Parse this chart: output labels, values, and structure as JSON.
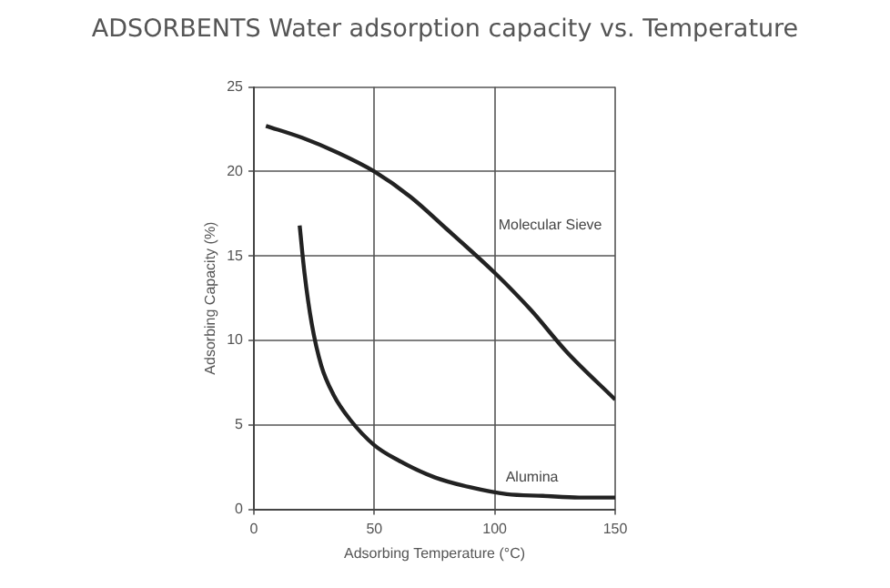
{
  "chart_data": {
    "type": "line",
    "title": "ADSORBENTS Water adsorption capacity vs. Temperature",
    "xlabel": "Adsorbing Temperature (°C)",
    "ylabel": "Adsorbing Capacity (%)",
    "xlim": [
      0,
      150
    ],
    "xticks": [
      0,
      50,
      100,
      150
    ],
    "ylim": [
      0,
      25
    ],
    "yticks": [
      0,
      5,
      10,
      15,
      20,
      25
    ],
    "grid": true,
    "legend": false,
    "marker": "none",
    "line_style": "solid",
    "series": [
      {
        "name": "Molecular Sieve",
        "color": "#222222",
        "x": [
          5,
          20,
          35,
          50,
          65,
          80,
          100,
          115,
          130,
          150
        ],
        "values": [
          22.7,
          22,
          21.1,
          20,
          18.5,
          16.6,
          14,
          11.8,
          9.3,
          6.5
        ]
      },
      {
        "name": "Alumina",
        "color": "#222222",
        "x": [
          19,
          21,
          24,
          28,
          33,
          40,
          50,
          60,
          75,
          90,
          105,
          120,
          135,
          150
        ],
        "values": [
          16.8,
          14,
          11,
          8.5,
          6.8,
          5.3,
          3.8,
          2.9,
          1.9,
          1.3,
          0.9,
          0.8,
          0.7,
          0.7
        ]
      }
    ]
  }
}
